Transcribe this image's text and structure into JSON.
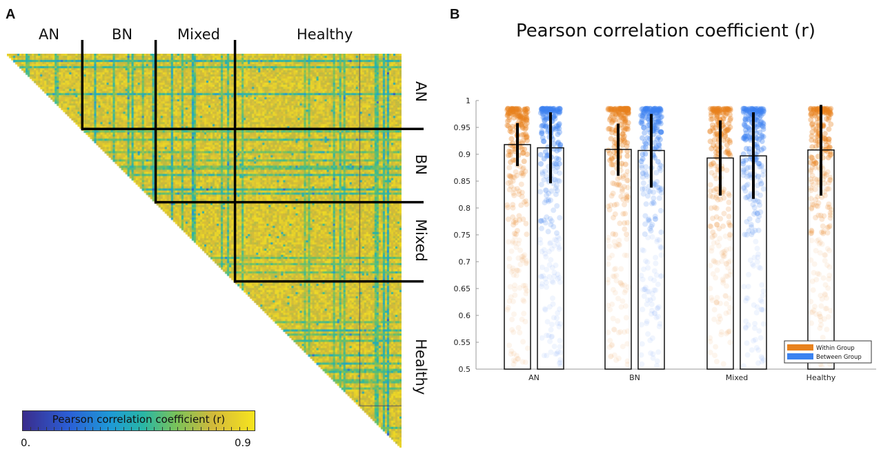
{
  "panel_a": {
    "letter": "A",
    "groups_top": [
      "AN",
      "BN",
      "Mixed",
      "Healthy"
    ],
    "groups_side": [
      "AN",
      "BN",
      "Mixed",
      "Healthy"
    ],
    "matrix_type": "heatmap",
    "group_boundaries_fraction": [
      0.191,
      0.377,
      0.578
    ],
    "colorbar": {
      "label": "Pearson correlation coefficient (r)",
      "min_label": "0.",
      "max_label": "0.9"
    },
    "colors": {
      "low": "#3a2c8c",
      "high": "#f7e41e",
      "dominant": "#e3c53a"
    }
  },
  "panel_b": {
    "letter": "B",
    "title": "Pearson correlation coefficient (r)"
  },
  "chart_data": {
    "type": "bar",
    "title": "Pearson correlation coefficient (r)",
    "categories": [
      "AN",
      "BN",
      "Mixed",
      "Healthy"
    ],
    "ylim": [
      0.5,
      1.0
    ],
    "yticks": [
      "0.5",
      "0.55",
      "0.6",
      "0.65",
      "0.7",
      "0.75",
      "0.8",
      "0.85",
      "0.9",
      "0.95",
      "1"
    ],
    "series": [
      {
        "name": "Within Group",
        "color": "#e8821e",
        "values": [
          0.918,
          0.909,
          0.893,
          0.908
        ],
        "err_low": [
          0.878,
          0.86,
          0.823,
          0.823
        ],
        "err_high": [
          0.958,
          0.957,
          0.963,
          0.992
        ]
      },
      {
        "name": "Between Group",
        "color": "#3b82f0",
        "values": [
          0.912,
          0.907,
          0.897,
          null
        ],
        "err_low": [
          0.846,
          0.838,
          0.817,
          null
        ],
        "err_high": [
          0.978,
          0.975,
          0.978,
          null
        ]
      }
    ],
    "legend": {
      "position": "bottom-right",
      "entries": [
        "Within Group",
        "Between Group"
      ]
    },
    "grid": false
  }
}
